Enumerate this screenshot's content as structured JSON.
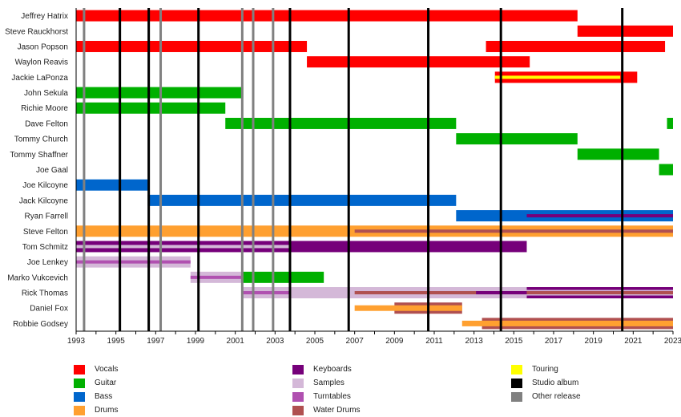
{
  "chart_data": {
    "type": "timeline",
    "title": "",
    "xlim": [
      1993,
      2023
    ],
    "x_ticks": [
      1993,
      1995,
      1997,
      1999,
      2001,
      2003,
      2005,
      2007,
      2009,
      2011,
      2013,
      2015,
      2017,
      2019,
      2021,
      2023
    ],
    "roles": {
      "vocals": {
        "label": "Vocals",
        "color": "#ff0000"
      },
      "guitar": {
        "label": "Guitar",
        "color": "#00b000"
      },
      "bass": {
        "label": "Bass",
        "color": "#0066cc"
      },
      "drums": {
        "label": "Drums",
        "color": "#ffa030"
      },
      "keyboards": {
        "label": "Keyboards",
        "color": "#76007a"
      },
      "samples": {
        "label": "Samples",
        "color": "#d4b8d8"
      },
      "turntables": {
        "label": "Turntables",
        "color": "#b050b0"
      },
      "waterdrums": {
        "label": "Water Drums",
        "color": "#b05050"
      },
      "touring": {
        "label": "Touring",
        "color": "#ffff00"
      },
      "studio": {
        "label": "Studio album",
        "color": "#000000"
      },
      "other": {
        "label": "Other release",
        "color": "#808080"
      }
    },
    "legend_columns": [
      [
        "vocals",
        "guitar",
        "bass",
        "drums"
      ],
      [
        "keyboards",
        "samples",
        "turntables",
        "waterdrums"
      ],
      [
        "touring",
        "studio",
        "other"
      ]
    ],
    "studio_albums": [
      1995.2,
      1996.65,
      1999.15,
      2003.75,
      2006.7,
      2010.7,
      2014.35,
      2020.45
    ],
    "other_releases": [
      1993.4,
      1997.25,
      2001.35,
      2001.9,
      2002.9
    ],
    "members": [
      {
        "name": "Jeffrey Hatrix",
        "segments": [
          {
            "role": "vocals",
            "start": 1993,
            "end": 2018.2
          }
        ]
      },
      {
        "name": "Steve Rauckhorst",
        "segments": [
          {
            "role": "vocals",
            "start": 2018.2,
            "end": 2023
          }
        ]
      },
      {
        "name": "Jason Popson",
        "segments": [
          {
            "role": "vocals",
            "start": 1993,
            "end": 2004.6
          },
          {
            "role": "vocals",
            "start": 2013.6,
            "end": 2022.6
          }
        ]
      },
      {
        "name": "Waylon Reavis",
        "segments": [
          {
            "role": "vocals",
            "start": 2004.6,
            "end": 2015.8
          }
        ]
      },
      {
        "name": "Jackie LaPonza",
        "segments": [
          {
            "role": "vocals",
            "start": 2014.05,
            "end": 2021.2
          },
          {
            "role": "touring",
            "start": 2014.05,
            "end": 2020.35,
            "inner": true
          }
        ]
      },
      {
        "name": "John Sekula",
        "segments": [
          {
            "role": "guitar",
            "start": 1993,
            "end": 2001.4
          }
        ]
      },
      {
        "name": "Richie Moore",
        "segments": [
          {
            "role": "guitar",
            "start": 1993,
            "end": 2000.5
          }
        ]
      },
      {
        "name": "Dave Felton",
        "segments": [
          {
            "role": "guitar",
            "start": 2000.5,
            "end": 2012.1
          },
          {
            "role": "guitar",
            "start": 2022.7,
            "end": 2023
          }
        ]
      },
      {
        "name": "Tommy Church",
        "segments": [
          {
            "role": "guitar",
            "start": 2012.1,
            "end": 2018.2
          }
        ]
      },
      {
        "name": "Tommy Shaffner",
        "segments": [
          {
            "role": "guitar",
            "start": 2018.2,
            "end": 2022.3
          }
        ]
      },
      {
        "name": "Joe Gaal",
        "segments": [
          {
            "role": "guitar",
            "start": 2022.3,
            "end": 2023
          }
        ]
      },
      {
        "name": "Joe Kilcoyne",
        "segments": [
          {
            "role": "bass",
            "start": 1993,
            "end": 1996.6
          }
        ]
      },
      {
        "name": "Jack Kilcoyne",
        "segments": [
          {
            "role": "bass",
            "start": 1996.6,
            "end": 2012.1
          }
        ]
      },
      {
        "name": "Ryan Farrell",
        "segments": [
          {
            "role": "bass",
            "start": 2012.1,
            "end": 2023
          },
          {
            "role": "keyboards",
            "start": 2015.65,
            "end": 2023,
            "inner": true
          }
        ]
      },
      {
        "name": "Steve Felton",
        "segments": [
          {
            "role": "drums",
            "start": 1993,
            "end": 2023
          },
          {
            "role": "waterdrums",
            "start": 2007,
            "end": 2023,
            "inner": true
          }
        ]
      },
      {
        "name": "Tom Schmitz",
        "segments": [
          {
            "role": "keyboards",
            "start": 1993,
            "end": 2015.65
          },
          {
            "role": "samples",
            "start": 1993,
            "end": 2003.75,
            "inner": true
          }
        ]
      },
      {
        "name": "Joe Lenkey",
        "segments": [
          {
            "role": "samples",
            "start": 1993,
            "end": 1998.75
          },
          {
            "role": "turntables",
            "start": 1993,
            "end": 1998.75,
            "inner": true
          }
        ]
      },
      {
        "name": "Marko Vukcevich",
        "segments": [
          {
            "role": "samples",
            "start": 1998.75,
            "end": 2001.4
          },
          {
            "role": "turntables",
            "start": 1998.75,
            "end": 2001.4,
            "inner": true
          },
          {
            "role": "guitar",
            "start": 2001.4,
            "end": 2005.45
          }
        ]
      },
      {
        "name": "Rick Thomas",
        "segments": [
          {
            "role": "samples",
            "start": 2001.4,
            "end": 2023
          },
          {
            "role": "keyboards",
            "start": 2015.65,
            "end": 2023
          },
          {
            "role": "samples",
            "start": 2015.65,
            "end": 2023,
            "mid": true
          },
          {
            "role": "turntables",
            "start": 2001.4,
            "end": 2003.75,
            "inner": true
          },
          {
            "role": "waterdrums",
            "start": 2007,
            "end": 2023,
            "inner": true
          },
          {
            "role": "keyboards",
            "start": 2013.1,
            "end": 2015.65,
            "inner": true
          }
        ]
      },
      {
        "name": "Daniel Fox",
        "segments": [
          {
            "role": "waterdrums",
            "start": 2009,
            "end": 2012.4
          },
          {
            "role": "drums",
            "start": 2007,
            "end": 2012.4,
            "mid": true
          }
        ]
      },
      {
        "name": "Robbie Godsey",
        "segments": [
          {
            "role": "waterdrums",
            "start": 2013.4,
            "end": 2023
          },
          {
            "role": "drums",
            "start": 2012.4,
            "end": 2023,
            "mid": true
          }
        ]
      }
    ]
  }
}
